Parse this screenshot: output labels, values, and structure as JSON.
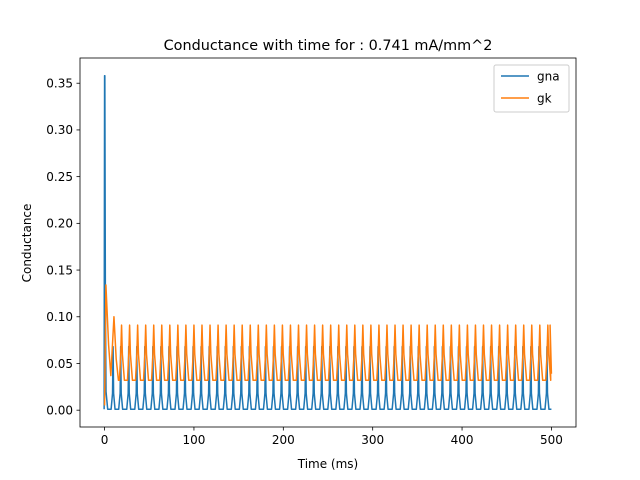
{
  "chart_data": {
    "type": "line",
    "title": "Conductance with time for : 0.741 mA/mm^2",
    "xlabel": "Time (ms)",
    "ylabel": "Conductance",
    "xlim": [
      -27.5,
      527.5
    ],
    "ylim": [
      -0.018,
      0.377
    ],
    "xticks": [
      0,
      100,
      200,
      300,
      400,
      500
    ],
    "yticks": [
      0.0,
      0.05,
      0.1,
      0.15,
      0.2,
      0.25,
      0.3,
      0.35
    ],
    "ytick_labels": [
      "0.00",
      "0.05",
      "0.10",
      "0.15",
      "0.20",
      "0.25",
      "0.30",
      "0.35"
    ],
    "grid": false,
    "legend": "top-right",
    "series": [
      {
        "name": "gna",
        "color": "#1f77b4",
        "first_peak": {
          "x": 0.3,
          "y": 0.358
        },
        "spike_peak": 0.068,
        "baseline": 0.001,
        "spike_times_ms": [
          0,
          9.5,
          18,
          27,
          36,
          45,
          54,
          63,
          72,
          81,
          90,
          99,
          108,
          117,
          126,
          135,
          144,
          153,
          162,
          171,
          180,
          189,
          198,
          207,
          216,
          225,
          234,
          243,
          252,
          261,
          270,
          279,
          288,
          297,
          306,
          315,
          324,
          333,
          342,
          351,
          360,
          369,
          378,
          387,
          396,
          405,
          414,
          423,
          432,
          441,
          450,
          459,
          468,
          477,
          486,
          495
        ],
        "x_end": 500,
        "y_end": 0.001
      },
      {
        "name": "gk",
        "color": "#ff7f0e",
        "first_peak": {
          "x": 1.5,
          "y": 0.134
        },
        "second_peak": {
          "x": 10.5,
          "y": 0.1
        },
        "spike_peak": 0.091,
        "trough": 0.032,
        "start": {
          "x": 0,
          "y": 0.005
        },
        "x_end": 500,
        "y_end": 0.039
      }
    ]
  }
}
